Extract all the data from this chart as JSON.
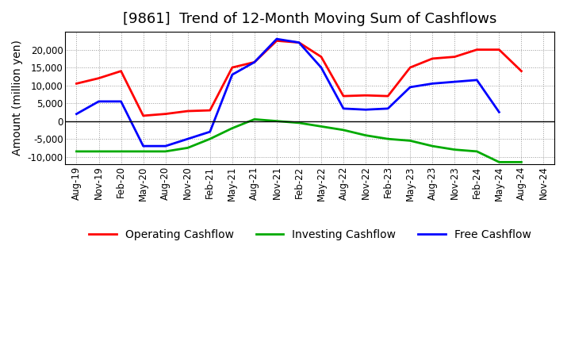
{
  "title": "[9861]  Trend of 12-Month Moving Sum of Cashflows",
  "ylabel": "Amount (million yen)",
  "x_labels": [
    "Aug-19",
    "Nov-19",
    "Feb-20",
    "May-20",
    "Aug-20",
    "Nov-20",
    "Feb-21",
    "May-21",
    "Aug-21",
    "Nov-21",
    "Feb-22",
    "May-22",
    "Aug-22",
    "Nov-22",
    "Feb-23",
    "May-23",
    "Aug-23",
    "Nov-23",
    "Feb-24",
    "May-24",
    "Aug-24",
    "Nov-24"
  ],
  "operating": [
    10500,
    12000,
    14000,
    1500,
    2000,
    2800,
    3000,
    15000,
    16500,
    22500,
    22000,
    18000,
    7000,
    7200,
    7000,
    15000,
    17500,
    18000,
    20000,
    20000,
    14000,
    null
  ],
  "investing": [
    -8500,
    -8500,
    -8500,
    -8500,
    -8500,
    -7500,
    -5000,
    -2000,
    500,
    0,
    -500,
    -1500,
    -2500,
    -4000,
    -5000,
    -5500,
    -7000,
    -8000,
    -8500,
    -11500,
    -11500,
    null
  ],
  "free": [
    2000,
    5500,
    5500,
    -7000,
    -7000,
    -5000,
    -3000,
    13000,
    16500,
    23000,
    22000,
    15000,
    3500,
    3200,
    3500,
    9500,
    10500,
    11000,
    11500,
    2500,
    null,
    null
  ],
  "operating_color": "#FF0000",
  "investing_color": "#00AA00",
  "free_color": "#0000FF",
  "ylim": [
    -12000,
    25000
  ],
  "yticks": [
    -10000,
    -5000,
    0,
    5000,
    10000,
    15000,
    20000
  ],
  "background_color": "#FFFFFF",
  "plot_bg_color": "#FFFFFF",
  "grid_color": "#999999",
  "title_fontsize": 13,
  "label_fontsize": 10,
  "tick_fontsize": 8.5,
  "legend_fontsize": 10,
  "linewidth": 2.0
}
